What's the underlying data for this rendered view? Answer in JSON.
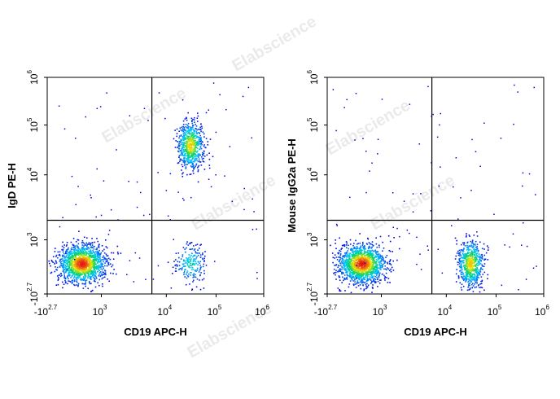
{
  "watermark": "Elabscience",
  "chart_data": [
    {
      "type": "scatter",
      "subtype": "flow-cytometry-density-dotplot",
      "xlabel": "CD19 APC-H",
      "ylabel": "IgD PE-H",
      "x_ticks": [
        {
          "base": "-10",
          "exp": "2.7"
        },
        {
          "base": "10",
          "exp": "3"
        },
        {
          "base": "10",
          "exp": "4"
        },
        {
          "base": "10",
          "exp": "5"
        },
        {
          "base": "10",
          "exp": "6"
        }
      ],
      "y_ticks": [
        {
          "base": "-10",
          "exp": "2.7"
        },
        {
          "base": "10",
          "exp": "3"
        },
        {
          "base": "10",
          "exp": "4"
        },
        {
          "base": "10",
          "exp": "5"
        },
        {
          "base": "10",
          "exp": "6"
        }
      ],
      "axis_scale": "biexponential",
      "quadrant_gate": {
        "x": 6000,
        "y": 2000
      },
      "populations": [
        {
          "name": "CD19- IgD-",
          "x_center": 450,
          "y_center": 350,
          "density": "high"
        },
        {
          "name": "CD19+ IgD+",
          "x_center": 30000,
          "y_center": 40000,
          "density": "medium"
        },
        {
          "name": "CD19+ IgD-",
          "x_center": 30000,
          "y_center": 350,
          "density": "low"
        }
      ]
    },
    {
      "type": "scatter",
      "subtype": "flow-cytometry-density-dotplot",
      "xlabel": "CD19 APC-H",
      "ylabel": "Mouse IgG2a PE-H",
      "x_ticks": [
        {
          "base": "-10",
          "exp": "2.7"
        },
        {
          "base": "10",
          "exp": "3"
        },
        {
          "base": "10",
          "exp": "4"
        },
        {
          "base": "10",
          "exp": "5"
        },
        {
          "base": "10",
          "exp": "6"
        }
      ],
      "y_ticks": [
        {
          "base": "-10",
          "exp": "2.7"
        },
        {
          "base": "10",
          "exp": "3"
        },
        {
          "base": "10",
          "exp": "4"
        },
        {
          "base": "10",
          "exp": "5"
        },
        {
          "base": "10",
          "exp": "6"
        }
      ],
      "axis_scale": "biexponential",
      "quadrant_gate": {
        "x": 6000,
        "y": 2000
      },
      "populations": [
        {
          "name": "CD19- isotype-",
          "x_center": 450,
          "y_center": 350,
          "density": "high"
        },
        {
          "name": "CD19+ isotype-",
          "x_center": 30000,
          "y_center": 350,
          "density": "medium"
        }
      ]
    }
  ]
}
